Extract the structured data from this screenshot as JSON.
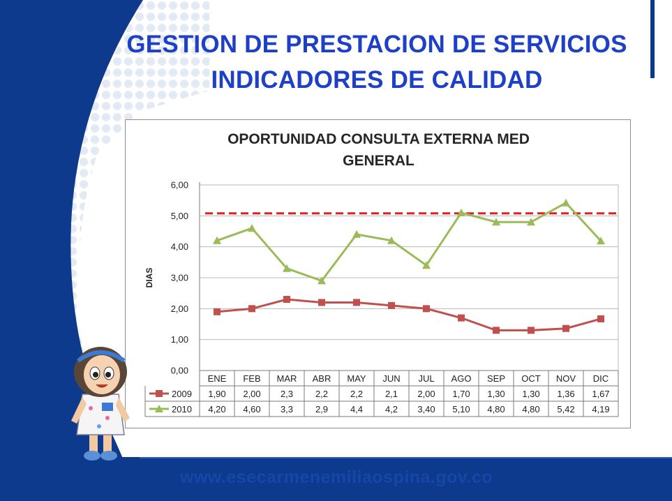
{
  "slide": {
    "title_line1": "GESTION DE PRESTACION DE SERVICIOS",
    "title_line2": "INDICADORES DE CALIDAD",
    "footer_url": "www.esecarmenemiliaospina.gov.co"
  },
  "colors": {
    "navy": "#0d3a8c",
    "title_blue": "#1e40c8",
    "series_2009": "#c0504d",
    "series_2010": "#9bbb59",
    "target_line": "#e02020"
  },
  "chart_data": {
    "type": "line",
    "title_line1": "OPORTUNIDAD CONSULTA EXTERNA MED",
    "title_line2": "GENERAL",
    "ylabel": "DIAS",
    "xlabel": "",
    "ylim": [
      0,
      6
    ],
    "yticks": [
      "0,00",
      "1,00",
      "2,00",
      "3,00",
      "4,00",
      "5,00",
      "6,00"
    ],
    "grid": true,
    "target_value": 5.08,
    "categories": [
      "ENE",
      "FEB",
      "MAR",
      "ABR",
      "MAY",
      "JUN",
      "JUL",
      "AGO",
      "SEP",
      "OCT",
      "NOV",
      "DIC"
    ],
    "series": [
      {
        "name": "2009",
        "marker": "square",
        "values": [
          1.9,
          2.0,
          2.3,
          2.2,
          2.2,
          2.1,
          2.0,
          1.7,
          1.3,
          1.3,
          1.36,
          1.67
        ],
        "labels": [
          "1,90",
          "2,00",
          "2,3",
          "2,2",
          "2,2",
          "2,1",
          "2,00",
          "1,70",
          "1,30",
          "1,30",
          "1,36",
          "1,67"
        ]
      },
      {
        "name": "2010",
        "marker": "triangle",
        "values": [
          4.2,
          4.6,
          3.3,
          2.9,
          4.4,
          4.2,
          3.4,
          5.1,
          4.8,
          4.8,
          5.42,
          4.19
        ],
        "labels": [
          "4,20",
          "4,60",
          "3,3",
          "2,9",
          "4,4",
          "4,2",
          "3,40",
          "5,10",
          "4,80",
          "4,80",
          "5,42",
          "4,19"
        ]
      }
    ]
  }
}
